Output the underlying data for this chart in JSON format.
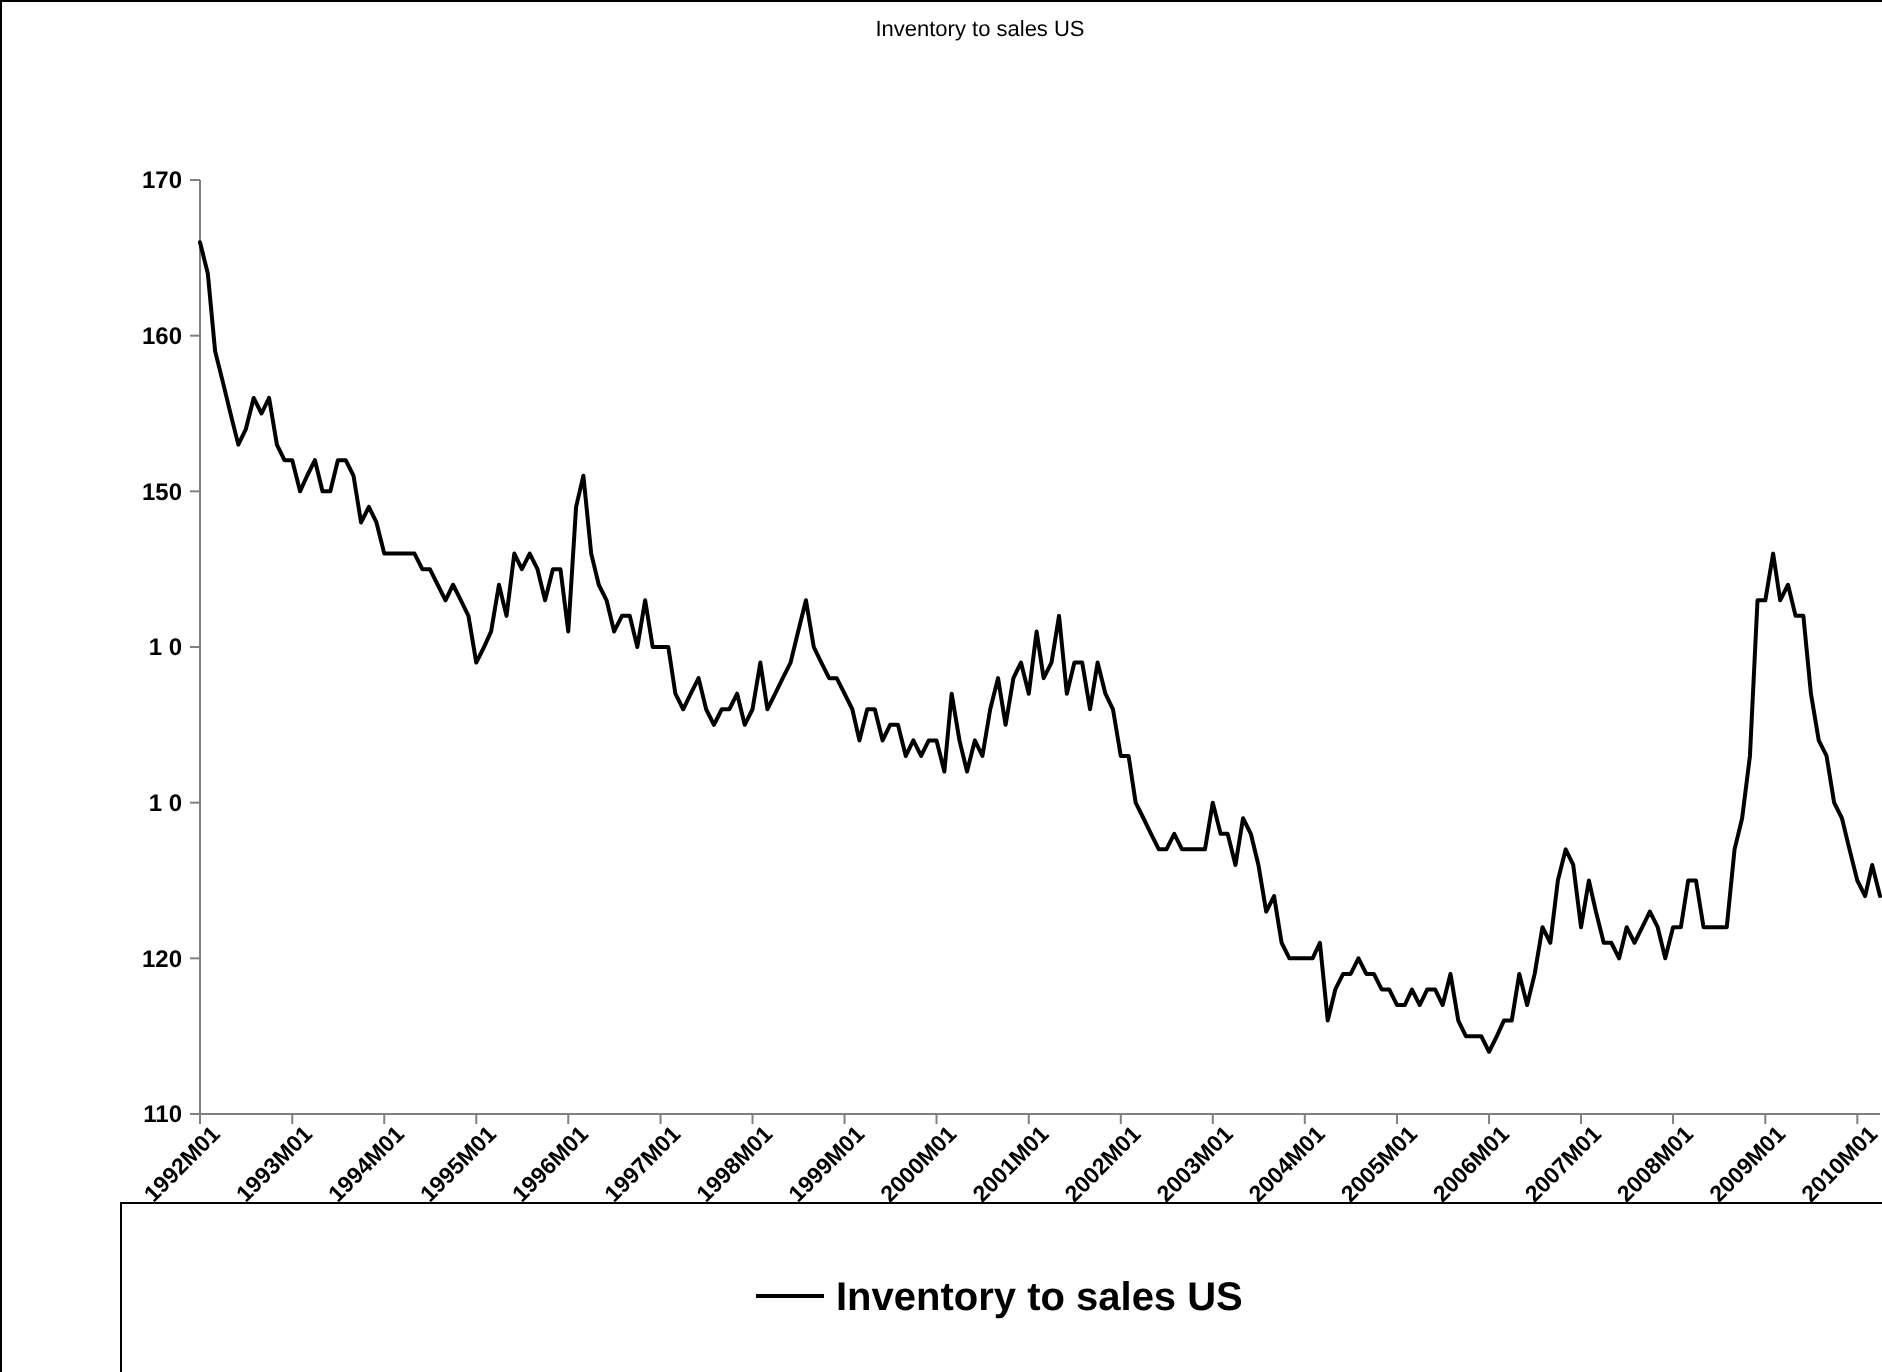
{
  "chart_data": {
    "type": "line",
    "title": "Inventory to sales US",
    "x": [
      "1992-01",
      "1992-02",
      "1992-03",
      "1992-04",
      "1992-05",
      "1992-06",
      "1992-07",
      "1992-08",
      "1992-09",
      "1992-10",
      "1992-11",
      "1992-12",
      "1993-01",
      "1993-02",
      "1993-03",
      "1993-04",
      "1993-05",
      "1993-06",
      "1993-07",
      "1993-08",
      "1993-09",
      "1993-10",
      "1993-11",
      "1993-12",
      "1994-01",
      "1994-02",
      "1994-03",
      "1994-04",
      "1994-05",
      "1994-06",
      "1994-07",
      "1994-08",
      "1994-09",
      "1994-10",
      "1994-11",
      "1994-12",
      "1995-01",
      "1995-02",
      "1995-03",
      "1995-04",
      "1995-05",
      "1995-06",
      "1995-07",
      "1995-08",
      "1995-09",
      "1995-10",
      "1995-11",
      "1995-12",
      "1996-01",
      "1996-02",
      "1996-03",
      "1996-04",
      "1996-05",
      "1996-06",
      "1996-07",
      "1996-08",
      "1996-09",
      "1996-10",
      "1996-11",
      "1996-12",
      "1997-01",
      "1997-02",
      "1997-03",
      "1997-04",
      "1997-05",
      "1997-06",
      "1997-07",
      "1997-08",
      "1997-09",
      "1997-10",
      "1997-11",
      "1997-12",
      "1998-01",
      "1998-02",
      "1998-03",
      "1998-04",
      "1998-05",
      "1998-06",
      "1998-07",
      "1998-08",
      "1998-09",
      "1998-10",
      "1998-11",
      "1998-12",
      "1999-01",
      "1999-02",
      "1999-03",
      "1999-04",
      "1999-05",
      "1999-06",
      "1999-07",
      "1999-08",
      "1999-09",
      "1999-10",
      "1999-11",
      "1999-12",
      "2000-01",
      "2000-02",
      "2000-03",
      "2000-04",
      "2000-05",
      "2000-06",
      "2000-07",
      "2000-08",
      "2000-09",
      "2000-10",
      "2000-11",
      "2000-12",
      "2001-01",
      "2001-02",
      "2001-03",
      "2001-04",
      "2001-05",
      "2001-06",
      "2001-07",
      "2001-08",
      "2001-09",
      "2001-10",
      "2001-11",
      "2001-12",
      "2002-01",
      "2002-02",
      "2002-03",
      "2002-04",
      "2002-05",
      "2002-06",
      "2002-07",
      "2002-08",
      "2002-09",
      "2002-10",
      "2002-11",
      "2002-12",
      "2003-01",
      "2003-02",
      "2003-03",
      "2003-04",
      "2003-05",
      "2003-06",
      "2003-07",
      "2003-08",
      "2003-09",
      "2003-10",
      "2003-11",
      "2003-12",
      "2004-01",
      "2004-02",
      "2004-03",
      "2004-04",
      "2004-05",
      "2004-06",
      "2004-07",
      "2004-08",
      "2004-09",
      "2004-10",
      "2004-11",
      "2004-12",
      "2005-01",
      "2005-02",
      "2005-03",
      "2005-04",
      "2005-05",
      "2005-06",
      "2005-07",
      "2005-08",
      "2005-09",
      "2005-10",
      "2005-11",
      "2005-12",
      "2006-01",
      "2006-02",
      "2006-03",
      "2006-04",
      "2006-05",
      "2006-06",
      "2006-07",
      "2006-08",
      "2006-09",
      "2006-10",
      "2006-11",
      "2006-12",
      "2007-01",
      "2007-02",
      "2007-03",
      "2007-04",
      "2007-05",
      "2007-06",
      "2007-07",
      "2007-08",
      "2007-09",
      "2007-10",
      "2007-11",
      "2007-12",
      "2008-01",
      "2008-02",
      "2008-03",
      "2008-04",
      "2008-05",
      "2008-06",
      "2008-07",
      "2008-08",
      "2008-09",
      "2008-10",
      "2008-11",
      "2008-12",
      "2009-01",
      "2009-02",
      "2009-03",
      "2009-04",
      "2009-05",
      "2009-06",
      "2009-07",
      "2009-08",
      "2009-09",
      "2009-10",
      "2009-11",
      "2009-12",
      "2010-01",
      "2010-02",
      "2010-03",
      "2010-04"
    ],
    "series": [
      {
        "name": "Inventory to sales US",
        "color": "#000000",
        "values": [
          166,
          164,
          159,
          157,
          155,
          153,
          154,
          156,
          155,
          156,
          153,
          152,
          152,
          150,
          151,
          152,
          150,
          150,
          152,
          152,
          151,
          148,
          149,
          148,
          146,
          146,
          146,
          146,
          146,
          145,
          145,
          144,
          143,
          144,
          143,
          142,
          139,
          140,
          141,
          144,
          142,
          146,
          145,
          146,
          145,
          143,
          145,
          145,
          141,
          149,
          151,
          146,
          144,
          143,
          141,
          142,
          142,
          140,
          143,
          140,
          140,
          140,
          137,
          136,
          137,
          138,
          136,
          135,
          136,
          136,
          137,
          135,
          136,
          139,
          136,
          137,
          138,
          139,
          141,
          143,
          140,
          139,
          138,
          138,
          137,
          136,
          134,
          136,
          136,
          134,
          135,
          135,
          133,
          134,
          133,
          134,
          134,
          132,
          137,
          134,
          132,
          134,
          133,
          136,
          138,
          135,
          138,
          139,
          137,
          141,
          138,
          139,
          142,
          137,
          139,
          139,
          136,
          139,
          137,
          136,
          133,
          133,
          130,
          129,
          128,
          127,
          127,
          128,
          127,
          127,
          127,
          127,
          130,
          128,
          128,
          126,
          129,
          128,
          126,
          123,
          124,
          121,
          120,
          120,
          120,
          120,
          121,
          116,
          118,
          119,
          119,
          120,
          119,
          119,
          118,
          118,
          117,
          117,
          118,
          117,
          118,
          118,
          117,
          119,
          116,
          115,
          115,
          115,
          114,
          115,
          116,
          116,
          119,
          117,
          119,
          122,
          121,
          125,
          127,
          126,
          122,
          125,
          123,
          121,
          121,
          120,
          122,
          121,
          122,
          123,
          122,
          120,
          122,
          122,
          125,
          125,
          122,
          122,
          122,
          122,
          127,
          129,
          133,
          143,
          143,
          146,
          143,
          144,
          142,
          142,
          137,
          134,
          133,
          130,
          129,
          127,
          125,
          124,
          126,
          124
        ]
      }
    ],
    "xlim": [
      "1992-01",
      "2010-04"
    ],
    "xticks": [
      {
        "value": "1992-01",
        "label": "1992M01"
      },
      {
        "value": "1993-01",
        "label": "1993M01"
      },
      {
        "value": "1994-01",
        "label": "1994M01"
      },
      {
        "value": "1995-01",
        "label": "1995M01"
      },
      {
        "value": "1996-01",
        "label": "1996M01"
      },
      {
        "value": "1997-01",
        "label": "1997M01"
      },
      {
        "value": "1998-01",
        "label": "1998M01"
      },
      {
        "value": "1999-01",
        "label": "1999M01"
      },
      {
        "value": "2000-01",
        "label": "2000M01"
      },
      {
        "value": "2001-01",
        "label": "2001M01"
      },
      {
        "value": "2002-01",
        "label": "2002M01"
      },
      {
        "value": "2003-01",
        "label": "2003M01"
      },
      {
        "value": "2004-01",
        "label": "2004M01"
      },
      {
        "value": "2005-01",
        "label": "2005M01"
      },
      {
        "value": "2006-01",
        "label": "2006M01"
      },
      {
        "value": "2007-01",
        "label": "2007M01"
      },
      {
        "value": "2008-01",
        "label": "2008M01"
      },
      {
        "value": "2009-01",
        "label": "2009M01"
      },
      {
        "value": "2010-01",
        "label": "2010M01"
      }
    ],
    "ylim": [
      110,
      170
    ],
    "yticks": [
      170,
      160,
      150,
      {
        "value": 140,
        "label": "1 0"
      },
      {
        "value": 130,
        "label": "1 0"
      },
      120,
      110
    ],
    "grid": false,
    "legend": "bottom",
    "marker": "none",
    "line_style": "solid"
  }
}
